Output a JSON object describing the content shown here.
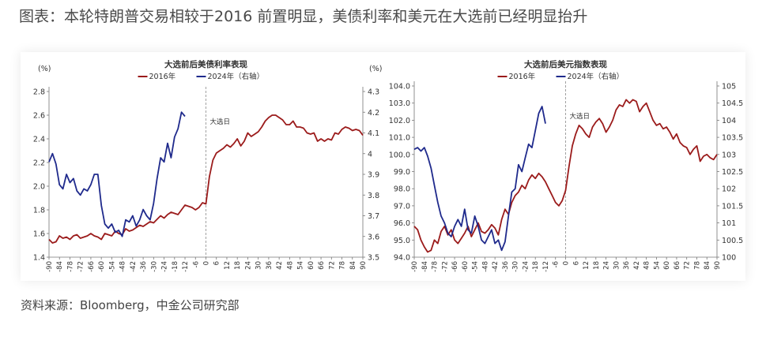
{
  "heading": "图表：本轮特朗普交易相较于2016 前置明显，美债利率和美元在大选前已经明显抬升",
  "source": "资料来源：Bloomberg，中金公司研究部",
  "colors": {
    "series_2016": "#9b1b1b",
    "series_2024": "#1f2a8c",
    "text": "#333333",
    "divider": "#999999"
  },
  "chart_data": [
    {
      "type": "line",
      "title": "大选前后美债利率表现",
      "left_unit": "(%)",
      "right_unit": "(%)",
      "event_label": "大选日",
      "ylim": [
        1.4,
        2.8
      ],
      "y_ticks": [
        1.4,
        1.6,
        1.8,
        2.0,
        2.2,
        2.4,
        2.6,
        2.8
      ],
      "y_tick_labels": [
        "1.4",
        "1.6",
        "1.8",
        "2.0",
        "2.2",
        "2.4",
        "2.6",
        "2.8"
      ],
      "y2lim": [
        3.5,
        4.3
      ],
      "y2_ticks": [
        3.5,
        3.6,
        3.7,
        3.8,
        3.9,
        4.0,
        4.1,
        4.2,
        4.3
      ],
      "y2_tick_labels": [
        "3.5",
        "3.6",
        "3.7",
        "3.8",
        "3.9",
        "4",
        "4.1",
        "4.2",
        "4.3"
      ],
      "xlim": [
        -90,
        90
      ],
      "x_ticks": [
        -90,
        -84,
        -78,
        -72,
        -66,
        -60,
        -54,
        -48,
        -42,
        -36,
        -30,
        -24,
        -18,
        -12,
        -6,
        0,
        6,
        12,
        18,
        24,
        30,
        36,
        42,
        48,
        54,
        60,
        66,
        72,
        78,
        84,
        90
      ],
      "x_tick_labels": [
        "-90",
        "-84",
        "-78",
        "-72",
        "-66",
        "-60",
        "-54",
        "-48",
        "-42",
        "-36",
        "-30",
        "-24",
        "-18",
        "-12",
        "-6",
        "0",
        "6",
        "12",
        "18",
        "24",
        "30",
        "36",
        "42",
        "48",
        "54",
        "60",
        "66",
        "72",
        "78",
        "84",
        "90"
      ],
      "series": [
        {
          "name": "2016年",
          "axis": "left",
          "x": [
            -90,
            -88,
            -86,
            -84,
            -82,
            -80,
            -78,
            -76,
            -74,
            -72,
            -70,
            -68,
            -66,
            -64,
            -62,
            -60,
            -58,
            -56,
            -54,
            -52,
            -50,
            -48,
            -46,
            -44,
            -42,
            -40,
            -38,
            -36,
            -34,
            -32,
            -30,
            -28,
            -26,
            -24,
            -22,
            -20,
            -18,
            -16,
            -14,
            -12,
            -10,
            -8,
            -6,
            -4,
            -2,
            0,
            2,
            4,
            6,
            8,
            10,
            12,
            14,
            16,
            18,
            20,
            22,
            24,
            26,
            28,
            30,
            32,
            34,
            36,
            38,
            40,
            42,
            44,
            46,
            48,
            50,
            52,
            54,
            56,
            58,
            60,
            62,
            64,
            66,
            68,
            70,
            72,
            74,
            76,
            78,
            80,
            82,
            84,
            86,
            88,
            90
          ],
          "y": [
            1.55,
            1.52,
            1.53,
            1.58,
            1.56,
            1.57,
            1.55,
            1.58,
            1.59,
            1.56,
            1.57,
            1.58,
            1.6,
            1.58,
            1.57,
            1.55,
            1.6,
            1.59,
            1.58,
            1.62,
            1.6,
            1.59,
            1.64,
            1.62,
            1.63,
            1.65,
            1.67,
            1.66,
            1.68,
            1.7,
            1.69,
            1.72,
            1.75,
            1.73,
            1.76,
            1.78,
            1.77,
            1.76,
            1.8,
            1.84,
            1.83,
            1.82,
            1.8,
            1.82,
            1.86,
            1.85,
            2.08,
            2.22,
            2.28,
            2.3,
            2.32,
            2.35,
            2.33,
            2.36,
            2.4,
            2.34,
            2.38,
            2.45,
            2.42,
            2.44,
            2.46,
            2.5,
            2.55,
            2.58,
            2.6,
            2.6,
            2.58,
            2.56,
            2.52,
            2.52,
            2.55,
            2.5,
            2.5,
            2.49,
            2.45,
            2.44,
            2.45,
            2.38,
            2.4,
            2.38,
            2.4,
            2.39,
            2.45,
            2.44,
            2.48,
            2.5,
            2.49,
            2.47,
            2.48,
            2.47,
            2.43
          ]
        },
        {
          "name": "2024年（右轴）",
          "axis": "right",
          "x": [
            -90,
            -88,
            -86,
            -84,
            -82,
            -80,
            -78,
            -76,
            -74,
            -72,
            -70,
            -68,
            -66,
            -64,
            -62,
            -60,
            -58,
            -56,
            -54,
            -52,
            -50,
            -48,
            -46,
            -44,
            -42,
            -40,
            -38,
            -36,
            -34,
            -32,
            -30,
            -28,
            -26,
            -24,
            -22,
            -20,
            -18,
            -16,
            -14,
            -12
          ],
          "y": [
            3.96,
            4.0,
            3.95,
            3.85,
            3.83,
            3.9,
            3.86,
            3.88,
            3.82,
            3.8,
            3.83,
            3.82,
            3.85,
            3.9,
            3.9,
            3.75,
            3.66,
            3.64,
            3.66,
            3.62,
            3.63,
            3.6,
            3.68,
            3.67,
            3.7,
            3.65,
            3.68,
            3.73,
            3.7,
            3.68,
            3.76,
            3.88,
            3.98,
            3.96,
            4.05,
            3.98,
            4.08,
            4.12,
            4.2,
            4.18
          ]
        }
      ]
    },
    {
      "type": "line",
      "title": "大选前后美元指数表现",
      "event_label": "大选日",
      "ylim": [
        94.0,
        104.0
      ],
      "y_ticks": [
        94,
        95,
        96,
        97,
        98,
        99,
        100,
        101,
        102,
        103,
        104
      ],
      "y_tick_labels": [
        "94.0",
        "95.0",
        "96.0",
        "97.0",
        "98.0",
        "99.0",
        "100.0",
        "101.0",
        "102.0",
        "103.0",
        "104.0"
      ],
      "y2lim": [
        100,
        105
      ],
      "y2_ticks": [
        100,
        100.5,
        101,
        101.5,
        102,
        102.5,
        103,
        103.5,
        104,
        104.5,
        105
      ],
      "y2_tick_labels": [
        "100",
        "100.5",
        "101",
        "101.5",
        "102",
        "102.5",
        "103",
        "103.5",
        "104",
        "104.5",
        "105"
      ],
      "xlim": [
        -90,
        90
      ],
      "x_ticks": [
        -90,
        -84,
        -78,
        -72,
        -66,
        -60,
        -54,
        -48,
        -42,
        -36,
        -30,
        -24,
        -18,
        -12,
        -6,
        0,
        6,
        12,
        18,
        24,
        30,
        36,
        42,
        48,
        54,
        60,
        66,
        72,
        78,
        84,
        90
      ],
      "x_tick_labels": [
        "-90",
        "-84",
        "-78",
        "-72",
        "-66",
        "-60",
        "-54",
        "-48",
        "-42",
        "-36",
        "-30",
        "-24",
        "-18",
        "-12",
        "-6",
        "0",
        "6",
        "12",
        "18",
        "24",
        "30",
        "36",
        "42",
        "48",
        "54",
        "60",
        "66",
        "72",
        "78",
        "84",
        "90"
      ],
      "series": [
        {
          "name": "2016年",
          "axis": "left",
          "x": [
            -90,
            -88,
            -86,
            -84,
            -82,
            -80,
            -78,
            -76,
            -74,
            -72,
            -70,
            -68,
            -66,
            -64,
            -62,
            -60,
            -58,
            -56,
            -54,
            -52,
            -50,
            -48,
            -46,
            -44,
            -42,
            -40,
            -38,
            -36,
            -34,
            -32,
            -30,
            -28,
            -26,
            -24,
            -22,
            -20,
            -18,
            -16,
            -14,
            -12,
            -10,
            -8,
            -6,
            -4,
            -2,
            0,
            2,
            4,
            6,
            8,
            10,
            12,
            14,
            16,
            18,
            20,
            22,
            24,
            26,
            28,
            30,
            32,
            34,
            36,
            38,
            40,
            42,
            44,
            46,
            48,
            50,
            52,
            54,
            56,
            58,
            60,
            62,
            64,
            66,
            68,
            70,
            72,
            74,
            76,
            78,
            80,
            82,
            84,
            86,
            88,
            90
          ],
          "y": [
            95.8,
            95.6,
            95.0,
            94.6,
            94.3,
            94.4,
            95.0,
            94.8,
            95.5,
            95.8,
            95.3,
            95.6,
            95.0,
            94.8,
            95.1,
            95.4,
            95.8,
            95.2,
            95.6,
            96.0,
            95.5,
            95.4,
            95.6,
            95.9,
            95.7,
            95.3,
            96.2,
            96.8,
            96.5,
            97.2,
            97.6,
            97.8,
            98.2,
            98.0,
            98.5,
            98.8,
            98.6,
            98.9,
            98.7,
            98.4,
            98.0,
            97.6,
            97.2,
            97.0,
            97.3,
            97.9,
            99.3,
            100.5,
            101.2,
            101.7,
            101.5,
            101.2,
            101.0,
            101.6,
            101.9,
            102.1,
            101.8,
            101.3,
            101.6,
            102.0,
            102.6,
            102.9,
            102.8,
            103.2,
            103.0,
            103.2,
            103.1,
            102.5,
            102.8,
            103.0,
            102.5,
            102.0,
            101.7,
            101.8,
            101.5,
            101.6,
            101.3,
            100.9,
            101.2,
            100.7,
            100.5,
            100.4,
            100.0,
            100.3,
            100.5,
            99.6,
            99.9,
            100.0,
            99.8,
            99.7,
            100.0
          ]
        },
        {
          "name": "2024年（右轴）",
          "axis": "right",
          "x": [
            -90,
            -88,
            -86,
            -84,
            -82,
            -80,
            -78,
            -76,
            -74,
            -72,
            -70,
            -68,
            -66,
            -64,
            -62,
            -60,
            -58,
            -56,
            -54,
            -52,
            -50,
            -48,
            -46,
            -44,
            -42,
            -40,
            -38,
            -36,
            -34,
            -32,
            -30,
            -28,
            -26,
            -24,
            -22,
            -20,
            -18,
            -16,
            -14,
            -12
          ],
          "y": [
            103.15,
            103.2,
            103.1,
            103.2,
            102.95,
            102.6,
            102.1,
            101.6,
            101.2,
            101.0,
            100.7,
            100.6,
            100.9,
            101.1,
            100.9,
            101.4,
            100.8,
            100.7,
            101.2,
            100.9,
            100.5,
            100.4,
            100.6,
            100.8,
            100.4,
            100.5,
            100.2,
            100.45,
            101.2,
            101.9,
            102.0,
            102.7,
            102.5,
            102.9,
            103.3,
            103.2,
            103.7,
            104.2,
            104.4,
            103.9
          ]
        }
      ]
    }
  ]
}
